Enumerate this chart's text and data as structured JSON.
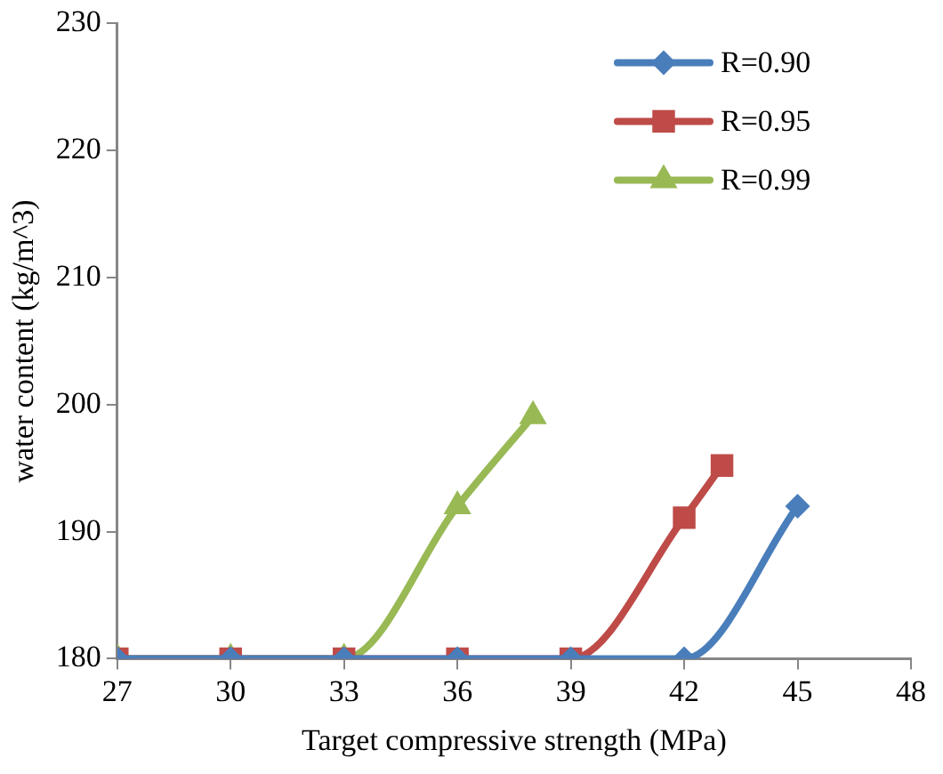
{
  "chart_data": {
    "type": "line",
    "xlabel": "Target compressive strength (MPa)",
    "ylabel": "water content (kg/m^3)",
    "xlim": [
      27,
      48
    ],
    "xticks": [
      27,
      30,
      33,
      36,
      39,
      42,
      45,
      48
    ],
    "ylim": [
      180,
      230
    ],
    "yticks": [
      180,
      190,
      200,
      210,
      220,
      230
    ],
    "grid": false,
    "legend": "top right",
    "line_style": "solid",
    "series": [
      {
        "name": "R=0.90",
        "color": "#4a7ebb",
        "marker": "diamond",
        "x": [
          27,
          30,
          33,
          36,
          39,
          42,
          45
        ],
        "values": [
          180,
          180,
          180,
          180,
          180,
          180,
          192
        ]
      },
      {
        "name": "R=0.95",
        "color": "#be4b48",
        "marker": "square",
        "x": [
          27,
          30,
          33,
          36,
          39,
          42,
          43
        ],
        "values": [
          180,
          180,
          180,
          180,
          180,
          191.1,
          195.2
        ]
      },
      {
        "name": "R=0.99",
        "color": "#98b954",
        "marker": "triangle",
        "x": [
          27,
          30,
          33,
          36,
          38
        ],
        "values": [
          180,
          180,
          180,
          192,
          199.1
        ]
      }
    ]
  }
}
